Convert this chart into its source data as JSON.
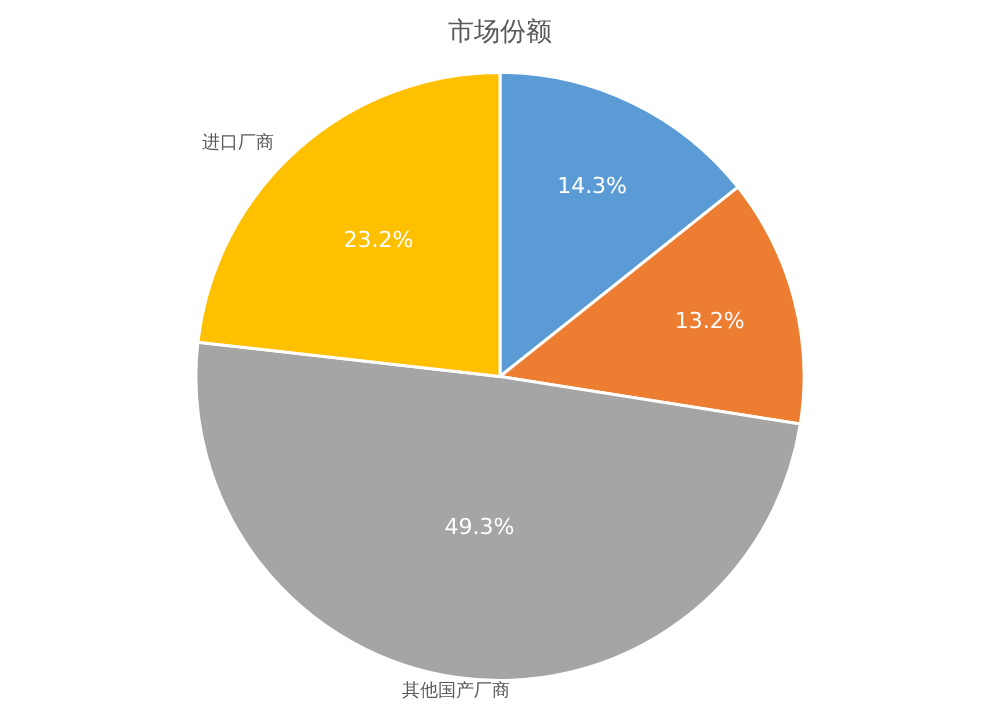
{
  "chart_data": {
    "type": "pie",
    "title": "市场份额",
    "categories": [
      null,
      null,
      "其他国产厂商",
      "进口厂商"
    ],
    "values": [
      14.3,
      13.2,
      49.3,
      23.2
    ],
    "colors": [
      "#5b9bd5",
      "#ed7d31",
      "#a5a5a5",
      "#ffc000"
    ],
    "value_labels": [
      "14.3%",
      "13.2%",
      "49.3%",
      "23.2%"
    ],
    "legend": false
  }
}
